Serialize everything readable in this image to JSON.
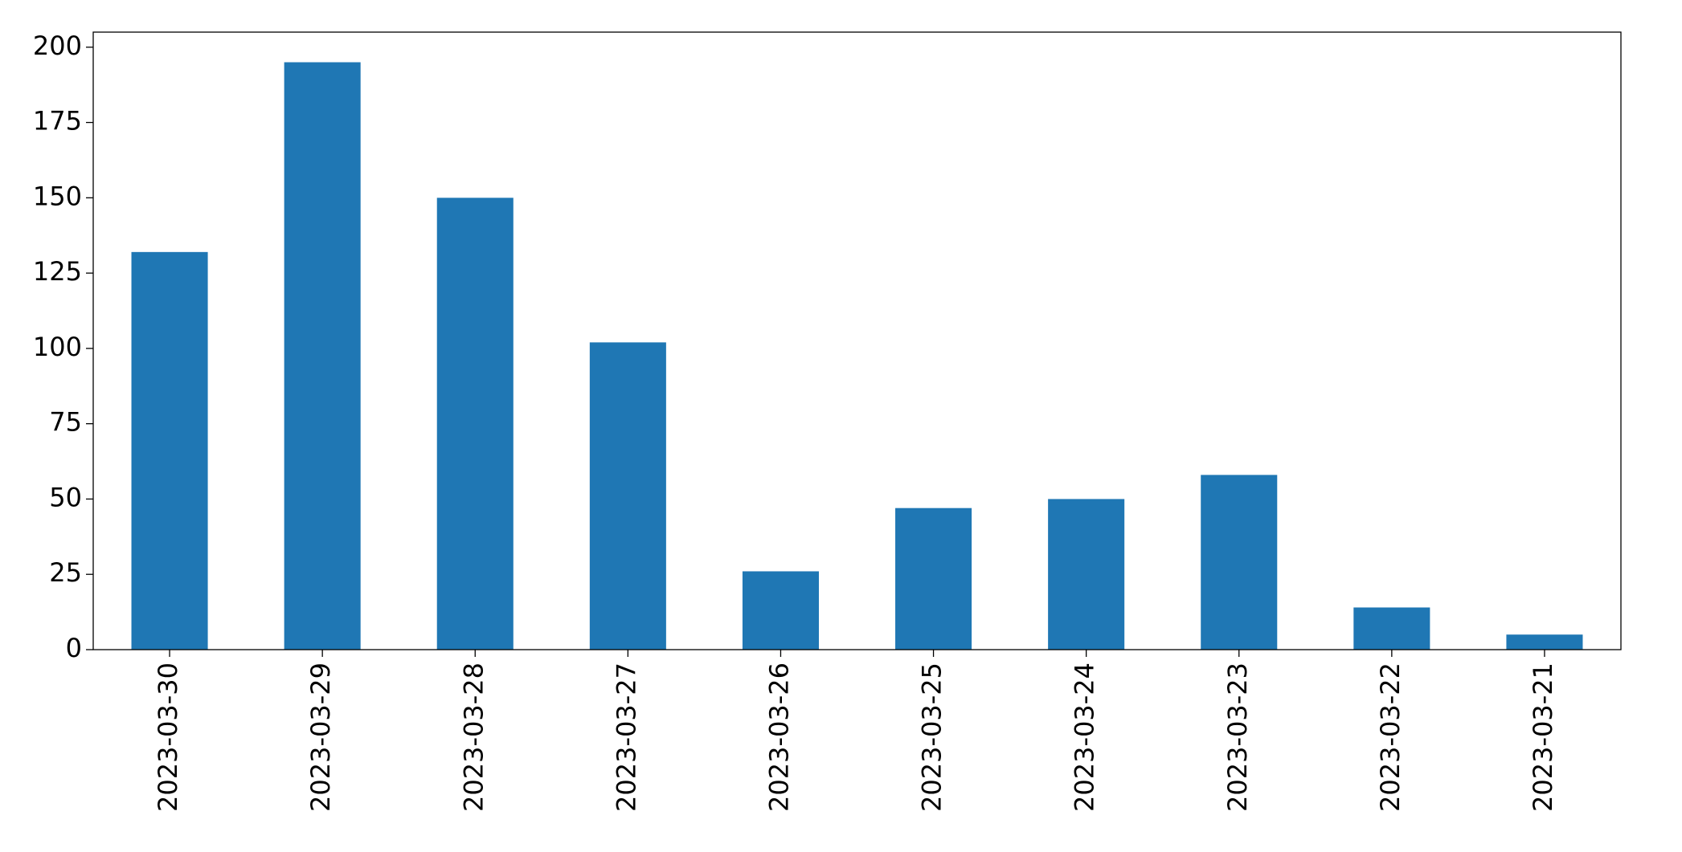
{
  "chart_data": {
    "type": "bar",
    "categories": [
      "2023-03-30",
      "2023-03-29",
      "2023-03-28",
      "2023-03-27",
      "2023-03-26",
      "2023-03-25",
      "2023-03-24",
      "2023-03-23",
      "2023-03-22",
      "2023-03-21"
    ],
    "values": [
      132,
      195,
      150,
      102,
      26,
      47,
      50,
      58,
      14,
      5
    ],
    "color": "#1f77b4",
    "ylim": [
      0,
      205
    ],
    "yticks": [
      0,
      25,
      50,
      75,
      100,
      125,
      150,
      175,
      200
    ],
    "grid": false
  }
}
